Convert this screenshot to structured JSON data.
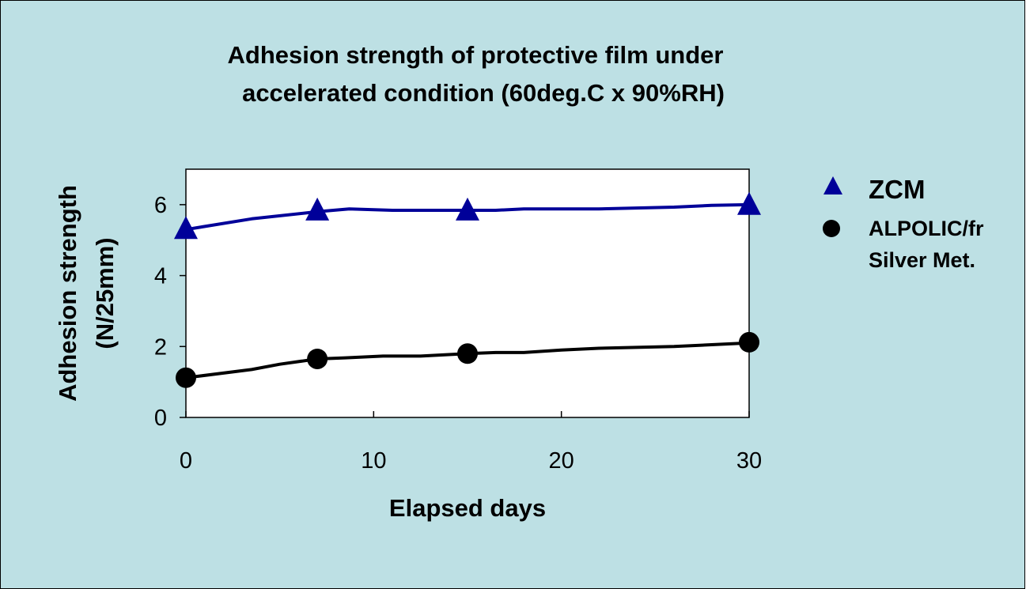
{
  "chart_data": {
    "type": "line",
    "title_lines": [
      "Adhesion strength of protective film under",
      "accelerated condition (60deg.C x 90%RH)"
    ],
    "xlabel": "Elapsed days",
    "ylabel_lines": [
      "Adhesion strength",
      "(N/25mm)"
    ],
    "xlim": [
      0,
      30
    ],
    "ylim": [
      0,
      7
    ],
    "x_ticks": [
      0,
      10,
      20,
      30
    ],
    "y_ticks": [
      0,
      2,
      4,
      6
    ],
    "grid": false,
    "legend_position": "right",
    "series": [
      {
        "name": "ZCM",
        "legend_lines": [
          "ZCM"
        ],
        "color": "#000099",
        "marker": "triangle",
        "curve": [
          [
            0,
            5.3
          ],
          [
            3.5,
            5.6
          ],
          [
            7,
            5.8
          ],
          [
            8.7,
            5.88
          ],
          [
            11,
            5.84
          ],
          [
            15,
            5.84
          ],
          [
            16.5,
            5.84
          ],
          [
            18,
            5.88
          ],
          [
            22,
            5.88
          ],
          [
            26,
            5.93
          ],
          [
            28,
            5.98
          ],
          [
            30,
            6.0
          ]
        ],
        "points": [
          [
            0,
            5.3
          ],
          [
            7,
            5.82
          ],
          [
            15,
            5.82
          ],
          [
            30,
            5.98
          ]
        ]
      },
      {
        "name": "ALPOLIC/fr Silver Met.",
        "legend_lines": [
          "ALPOLIC/fr",
          "Silver Met."
        ],
        "color": "#000000",
        "marker": "circle",
        "curve": [
          [
            0,
            1.12
          ],
          [
            3.5,
            1.35
          ],
          [
            5,
            1.5
          ],
          [
            7,
            1.65
          ],
          [
            8.5,
            1.68
          ],
          [
            10.5,
            1.73
          ],
          [
            12.5,
            1.73
          ],
          [
            15,
            1.8
          ],
          [
            16.5,
            1.83
          ],
          [
            18,
            1.83
          ],
          [
            20,
            1.9
          ],
          [
            22,
            1.95
          ],
          [
            26,
            2.0
          ],
          [
            28,
            2.05
          ],
          [
            30,
            2.1
          ]
        ],
        "points": [
          [
            0,
            1.12
          ],
          [
            7,
            1.65
          ],
          [
            15,
            1.8
          ],
          [
            30,
            2.12
          ]
        ]
      }
    ]
  }
}
